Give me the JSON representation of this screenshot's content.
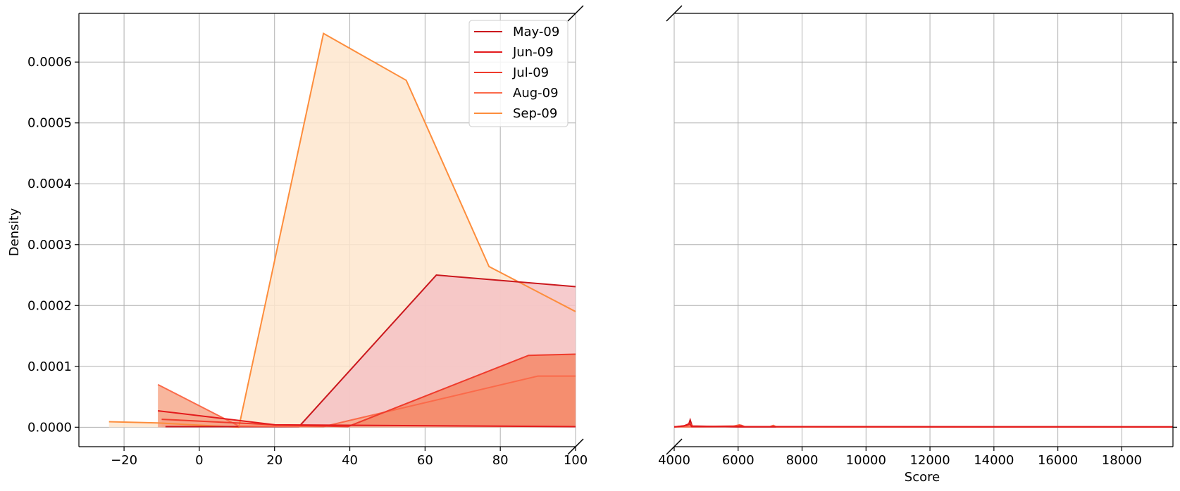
{
  "chart_data": {
    "type": "area",
    "title": "",
    "ylabel": "Density",
    "xlabel": "Score",
    "grid": true,
    "legend_position": "top-right of left panel",
    "broken_x_axis": true,
    "panels": [
      {
        "name": "left",
        "xlim": [
          -32,
          100
        ],
        "xticks": [
          -20,
          0,
          20,
          40,
          60,
          80,
          100
        ],
        "xtick_labels": [
          "−20",
          "0",
          "20",
          "40",
          "60",
          "80",
          "100"
        ]
      },
      {
        "name": "right",
        "xlim": [
          4000,
          19600
        ],
        "xticks": [
          4000,
          6000,
          8000,
          10000,
          12000,
          14000,
          16000,
          18000
        ],
        "xtick_labels": [
          "4000",
          "6000",
          "8000",
          "10000",
          "12000",
          "14000",
          "16000",
          "18000"
        ]
      }
    ],
    "ylim": [
      -3.2e-05,
      0.00068
    ],
    "yticks": [
      0,
      0.0001,
      0.0002,
      0.0003,
      0.0004,
      0.0005,
      0.0006
    ],
    "ytick_labels": [
      "0.0000",
      "0.0001",
      "0.0002",
      "0.0003",
      "0.0004",
      "0.0005",
      "0.0006"
    ],
    "series": [
      {
        "name": "Sep-09",
        "color": "#fd8d3c",
        "fill": "#fee6ce",
        "points": [
          [
            -24,
            9e-06
          ],
          [
            -11,
            7e-06
          ],
          [
            10.5,
            0.0
          ],
          [
            33,
            0.000647
          ],
          [
            55,
            0.00057
          ],
          [
            77,
            0.000264
          ],
          [
            100,
            0.00019
          ]
        ],
        "right_points": []
      },
      {
        "name": "May-09",
        "color": "#cb181d",
        "fill": "#f4c2c4",
        "points": [
          [
            -9,
            1e-06
          ],
          [
            26.5,
            1e-06
          ],
          [
            63,
            0.00025
          ],
          [
            100,
            0.000231
          ]
        ],
        "right_points": [
          [
            4000,
            5e-07
          ],
          [
            4350,
            2e-06
          ],
          [
            4450,
            4e-06
          ],
          [
            4500,
            1.2e-05
          ],
          [
            4560,
            2e-06
          ],
          [
            6000,
            5e-07
          ],
          [
            7100,
            5e-07
          ],
          [
            19600,
            5e-07
          ]
        ]
      },
      {
        "name": "Aug-09",
        "color": "#fb6a4a",
        "fill": "#f7a98c",
        "points": [
          [
            -11,
            7e-05
          ],
          [
            10.5,
            2e-06
          ],
          [
            33,
            1e-06
          ],
          [
            90,
            8.4e-05
          ],
          [
            100,
            8.4e-05
          ]
        ],
        "right_points": [
          [
            4000,
            5e-07
          ],
          [
            5800,
            1e-06
          ],
          [
            6050,
            4e-06
          ],
          [
            6150,
            1e-06
          ],
          [
            7000,
            1e-06
          ],
          [
            7100,
            3e-06
          ],
          [
            7200,
            5e-07
          ],
          [
            19600,
            5e-07
          ]
        ]
      },
      {
        "name": "Jul-09",
        "color": "#ef3b2c",
        "fill": "#f58868",
        "points": [
          [
            -10,
            1.3e-05
          ],
          [
            20,
            4e-06
          ],
          [
            39.5,
            1e-06
          ],
          [
            87.5,
            0.000118
          ],
          [
            100,
            0.00012
          ]
        ],
        "right_points": [
          [
            4000,
            5e-07
          ],
          [
            4400,
            3e-06
          ],
          [
            4520,
            5e-06
          ],
          [
            4600,
            1e-06
          ],
          [
            6000,
            2e-06
          ],
          [
            6100,
            3e-06
          ],
          [
            6200,
            1e-06
          ],
          [
            19600,
            5e-07
          ]
        ]
      },
      {
        "name": "Jun-09",
        "color": "#e31a1c",
        "fill": "#f6a98e",
        "points": [
          [
            -11,
            2.7e-05
          ],
          [
            20,
            4e-06
          ],
          [
            100,
            1e-06
          ]
        ],
        "right_points": [
          [
            4000,
            5e-07
          ],
          [
            4300,
            2e-06
          ],
          [
            4480,
            6e-06
          ],
          [
            4550,
            1e-06
          ],
          [
            19600,
            5e-07
          ]
        ]
      }
    ],
    "legend": [
      {
        "name": "May-09",
        "color": "#cb181d"
      },
      {
        "name": "Jun-09",
        "color": "#e31a1c"
      },
      {
        "name": "Jul-09",
        "color": "#ef3b2c"
      },
      {
        "name": "Aug-09",
        "color": "#fb6a4a"
      },
      {
        "name": "Sep-09",
        "color": "#fd8d3c"
      }
    ]
  }
}
